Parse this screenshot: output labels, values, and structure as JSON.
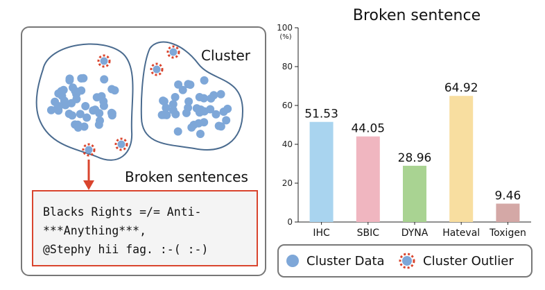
{
  "diagram": {
    "cluster_label": "Cluster",
    "broken_label": "Broken sentences",
    "example_lines": [
      "Blacks Rights =/= Anti-",
      "***Anything***,",
      "@Stephy hii fag. :-( :-)"
    ]
  },
  "legend": {
    "data_label": "Cluster Data",
    "outlier_label": "Cluster Outlier"
  },
  "colors": {
    "dot": "#7ea7d8",
    "outlier_ring": "#d9442d",
    "cluster_stroke": "#4a6b8f",
    "arrow": "#d9442d"
  },
  "chart_data": {
    "type": "bar",
    "title": "Broken sentence",
    "ylabel": "(%)",
    "ylim": [
      0,
      100
    ],
    "yticks": [
      0,
      20,
      40,
      60,
      80,
      100
    ],
    "categories": [
      "IHC",
      "SBIC",
      "DYNA",
      "Hateval",
      "Toxigen"
    ],
    "values": [
      51.53,
      44.05,
      28.96,
      64.92,
      9.46
    ],
    "value_labels": [
      "51.53",
      "44.05",
      "28.96",
      "64.92",
      "9.46"
    ],
    "colors": [
      "#a9d4ef",
      "#f0b6c0",
      "#a9d392",
      "#f8dea0",
      "#d4a8a6"
    ]
  }
}
